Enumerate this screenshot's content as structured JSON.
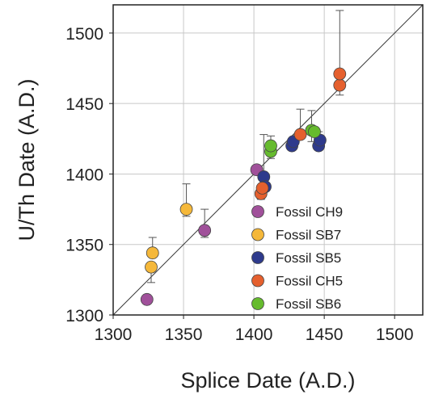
{
  "chart_data": {
    "type": "scatter",
    "xlabel": "Splice Date (A.D.)",
    "ylabel": "U/Th Date (A.D.)",
    "xlim": [
      1300,
      1520
    ],
    "ylim": [
      1300,
      1520
    ],
    "x_ticks": [
      1300,
      1350,
      1400,
      1450,
      1500
    ],
    "y_ticks": [
      1300,
      1350,
      1400,
      1450,
      1500
    ],
    "grid": true,
    "reference_line": "1:1",
    "legend_position": "bottom-right",
    "series": [
      {
        "name": "Fossil CH9",
        "color": "#a0509a",
        "points": [
          {
            "x": 1324,
            "y": 1311,
            "err_plus": 0,
            "err_minus": 0
          },
          {
            "x": 1365,
            "y": 1360,
            "err_plus": 15,
            "err_minus": 5
          },
          {
            "x": 1402,
            "y": 1403,
            "err_plus": 0,
            "err_minus": 0
          }
        ]
      },
      {
        "name": "Fossil SB7",
        "color": "#f5b83a",
        "points": [
          {
            "x": 1327,
            "y": 1334,
            "err_plus": 3,
            "err_minus": 11
          },
          {
            "x": 1328,
            "y": 1344,
            "err_plus": 11,
            "err_minus": 3
          },
          {
            "x": 1352,
            "y": 1375,
            "err_plus": 18,
            "err_minus": 5
          }
        ]
      },
      {
        "name": "Fossil SB5",
        "color": "#2e3a8c",
        "points": [
          {
            "x": 1407,
            "y": 1398,
            "err_plus": 30,
            "err_minus": 4
          },
          {
            "x": 1408,
            "y": 1391,
            "err_plus": 0,
            "err_minus": 0
          },
          {
            "x": 1427,
            "y": 1420,
            "err_plus": 0,
            "err_minus": 3
          },
          {
            "x": 1428,
            "y": 1423,
            "err_plus": 0,
            "err_minus": 0
          },
          {
            "x": 1446,
            "y": 1420,
            "err_plus": 10,
            "err_minus": 3
          },
          {
            "x": 1447,
            "y": 1424,
            "err_plus": 0,
            "err_minus": 0
          }
        ]
      },
      {
        "name": "Fossil CH5",
        "color": "#e5602e",
        "points": [
          {
            "x": 1405,
            "y": 1386,
            "err_plus": 15,
            "err_minus": 4
          },
          {
            "x": 1406,
            "y": 1390,
            "err_plus": 0,
            "err_minus": 0
          },
          {
            "x": 1433,
            "y": 1428,
            "err_plus": 18,
            "err_minus": 3
          },
          {
            "x": 1461,
            "y": 1463,
            "err_plus": 0,
            "err_minus": 7
          },
          {
            "x": 1461,
            "y": 1471,
            "err_plus": 45,
            "err_minus": 0
          }
        ]
      },
      {
        "name": "Fossil SB6",
        "color": "#66bb2e",
        "points": [
          {
            "x": 1412,
            "y": 1416,
            "err_plus": 11,
            "err_minus": 5
          },
          {
            "x": 1412,
            "y": 1420,
            "err_plus": 0,
            "err_minus": 0
          },
          {
            "x": 1441,
            "y": 1431,
            "err_plus": 14,
            "err_minus": 8
          },
          {
            "x": 1443,
            "y": 1430,
            "err_plus": 0,
            "err_minus": 0
          }
        ]
      }
    ]
  }
}
